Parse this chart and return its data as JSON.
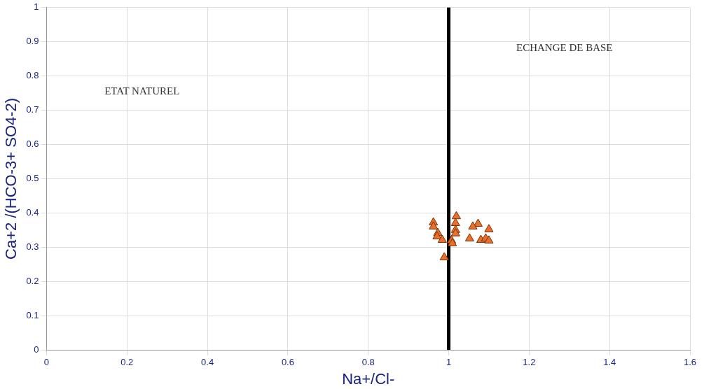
{
  "chart_data": {
    "type": "scatter",
    "xlabel": "Na+/Cl-",
    "ylabel": "Ca+2 /(HCO-3+ SO4-2)",
    "annotations": [
      "ETAT NATUREL",
      "ECHANGE DE BASE"
    ],
    "x": [
      1.019,
      0.962,
      0.962,
      1.017,
      1.073,
      1.06,
      1.1,
      0.973,
      1.017,
      1.017,
      0.971,
      1.052,
      0.984,
      1.007,
      1.009,
      1.08,
      1.092,
      1.1,
      0.989
    ],
    "series": [
      {
        "color": "#e8702a",
        "values": [
          0.39,
          0.372,
          0.36,
          0.37,
          0.368,
          0.36,
          0.352,
          0.341,
          0.35,
          0.34,
          0.331,
          0.325,
          0.321,
          0.319,
          0.311,
          0.321,
          0.325,
          0.319,
          0.27
        ]
      }
    ],
    "ref_lines": [
      {
        "axis": "x",
        "value": 1,
        "color": "#000000",
        "line_style": "solid"
      }
    ],
    "xlim": [
      0,
      1.6
    ],
    "xticks": [
      0,
      0.2,
      0.4,
      0.6,
      0.8,
      1,
      1.2,
      1.4,
      1.6
    ],
    "ylim": [
      0,
      1
    ],
    "yticks": [
      0,
      0.1,
      0.2,
      0.3,
      0.4,
      0.5,
      0.6,
      0.7,
      0.8,
      0.9,
      1
    ],
    "grid": true,
    "legend": false,
    "marker": "triangle"
  }
}
